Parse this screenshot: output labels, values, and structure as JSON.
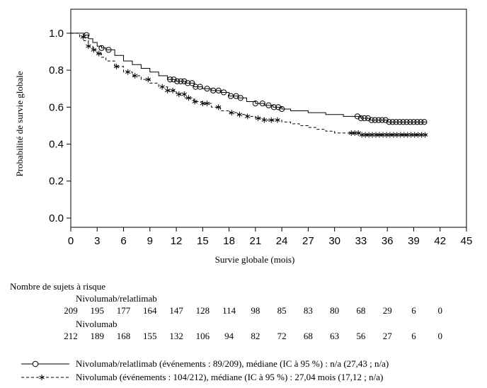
{
  "chart_data": {
    "type": "line",
    "ylabel": "Probabilité de survie globale",
    "xlabel": "Survie globale (mois)",
    "xlim": [
      0,
      45
    ],
    "ylim": [
      -0.05,
      1.13
    ],
    "x_ticks": [
      0,
      3,
      6,
      9,
      12,
      15,
      18,
      21,
      24,
      27,
      30,
      33,
      36,
      39,
      42,
      45
    ],
    "y_ticks": [
      0.0,
      0.2,
      0.4,
      0.6,
      0.8,
      1.0
    ],
    "y_tick_labels": [
      "0.0",
      "0.2",
      "0.4",
      "0.6",
      "0.8",
      "1.0"
    ],
    "grid": false,
    "series": [
      {
        "name": "Nivolumab/relatlimab",
        "style": "solid",
        "marker": "circle",
        "x": [
          0,
          1,
          1.5,
          2,
          2.5,
          3,
          3.5,
          4,
          5,
          6,
          7,
          8,
          9,
          10,
          11,
          12,
          13,
          14,
          15,
          16,
          17,
          18,
          19,
          20,
          21,
          22,
          23,
          24,
          25,
          26,
          27,
          28,
          29,
          30,
          31,
          32,
          33,
          34,
          35,
          36,
          37,
          38,
          39,
          40.5
        ],
        "y": [
          1.0,
          1.0,
          0.99,
          0.97,
          0.95,
          0.93,
          0.92,
          0.91,
          0.88,
          0.85,
          0.83,
          0.81,
          0.79,
          0.77,
          0.75,
          0.74,
          0.73,
          0.71,
          0.7,
          0.69,
          0.68,
          0.66,
          0.65,
          0.63,
          0.62,
          0.61,
          0.6,
          0.59,
          0.58,
          0.58,
          0.57,
          0.57,
          0.56,
          0.56,
          0.55,
          0.55,
          0.54,
          0.53,
          0.53,
          0.52,
          0.52,
          0.52,
          0.52,
          0.52
        ],
        "censor_x": [
          1.8,
          3.5,
          4.3,
          11.3,
          11.7,
          12.1,
          12.5,
          12.9,
          13.3,
          13.8,
          14.2,
          14.7,
          15.5,
          16.2,
          16.8,
          17.4,
          18.2,
          18.8,
          19.3,
          21.0,
          21.8,
          22.5,
          23.1,
          23.6,
          24.0,
          32.6,
          33.0,
          33.4,
          33.8,
          34.2,
          34.6,
          35.0,
          35.4,
          35.8,
          36.2,
          36.6,
          37.0,
          37.4,
          37.8,
          38.2,
          38.6,
          39.0,
          39.4,
          39.8,
          40.2
        ]
      },
      {
        "name": "Nivolumab",
        "style": "dashed",
        "marker": "asterisk",
        "x": [
          0,
          1,
          1.5,
          2,
          2.5,
          3,
          3.5,
          4,
          5,
          6,
          7,
          8,
          9,
          10,
          11,
          12,
          13,
          14,
          15,
          16,
          17,
          18,
          19,
          20,
          21,
          22,
          23,
          24,
          25,
          26,
          27,
          28,
          29,
          30,
          31,
          32,
          33,
          34,
          35,
          36,
          37,
          38,
          39,
          40.5
        ],
        "y": [
          1.0,
          0.98,
          0.96,
          0.93,
          0.91,
          0.89,
          0.87,
          0.85,
          0.82,
          0.79,
          0.77,
          0.75,
          0.73,
          0.71,
          0.69,
          0.67,
          0.65,
          0.63,
          0.62,
          0.6,
          0.58,
          0.57,
          0.56,
          0.55,
          0.54,
          0.53,
          0.53,
          0.52,
          0.51,
          0.5,
          0.49,
          0.48,
          0.47,
          0.46,
          0.46,
          0.46,
          0.45,
          0.45,
          0.45,
          0.45,
          0.45,
          0.45,
          0.45,
          0.45
        ],
        "censor_x": [
          1.4,
          2.0,
          2.6,
          3.2,
          5.2,
          6.5,
          7.3,
          8.8,
          10.4,
          11.0,
          11.6,
          12.3,
          12.9,
          13.4,
          14.1,
          15.0,
          15.5,
          16.8,
          18.3,
          19.2,
          20.1,
          21.3,
          22.0,
          22.8,
          23.5,
          31.9,
          32.3,
          32.7,
          33.1,
          33.5,
          33.9,
          34.3,
          34.7,
          35.1,
          35.5,
          35.9,
          36.3,
          36.7,
          37.1,
          37.5,
          37.9,
          38.3,
          38.7,
          39.1,
          39.5,
          39.9,
          40.3
        ]
      }
    ]
  },
  "risk_table": {
    "title": "Nombre de sujets à risque",
    "groups": [
      {
        "label": "Nivolumab/relatlimab",
        "values": [
          "209",
          "195",
          "177",
          "164",
          "147",
          "128",
          "114",
          "98",
          "85",
          "83",
          "80",
          "68",
          "29",
          "6",
          "0"
        ]
      },
      {
        "label": "Nivolumab",
        "values": [
          "212",
          "189",
          "168",
          "155",
          "132",
          "106",
          "94",
          "82",
          "72",
          "68",
          "63",
          "56",
          "27",
          "6",
          "0"
        ]
      }
    ]
  },
  "legend": [
    {
      "text": "Nivolumab/relatlimab (événements : 89/209), médiane (IC à 95 %) : n/a (27,43 ; n/a)"
    },
    {
      "text": "Nivolumab (événements : 104/212), médiane (IC à 95 %) : 27,04 mois (17,12 ; n/a)"
    }
  ]
}
